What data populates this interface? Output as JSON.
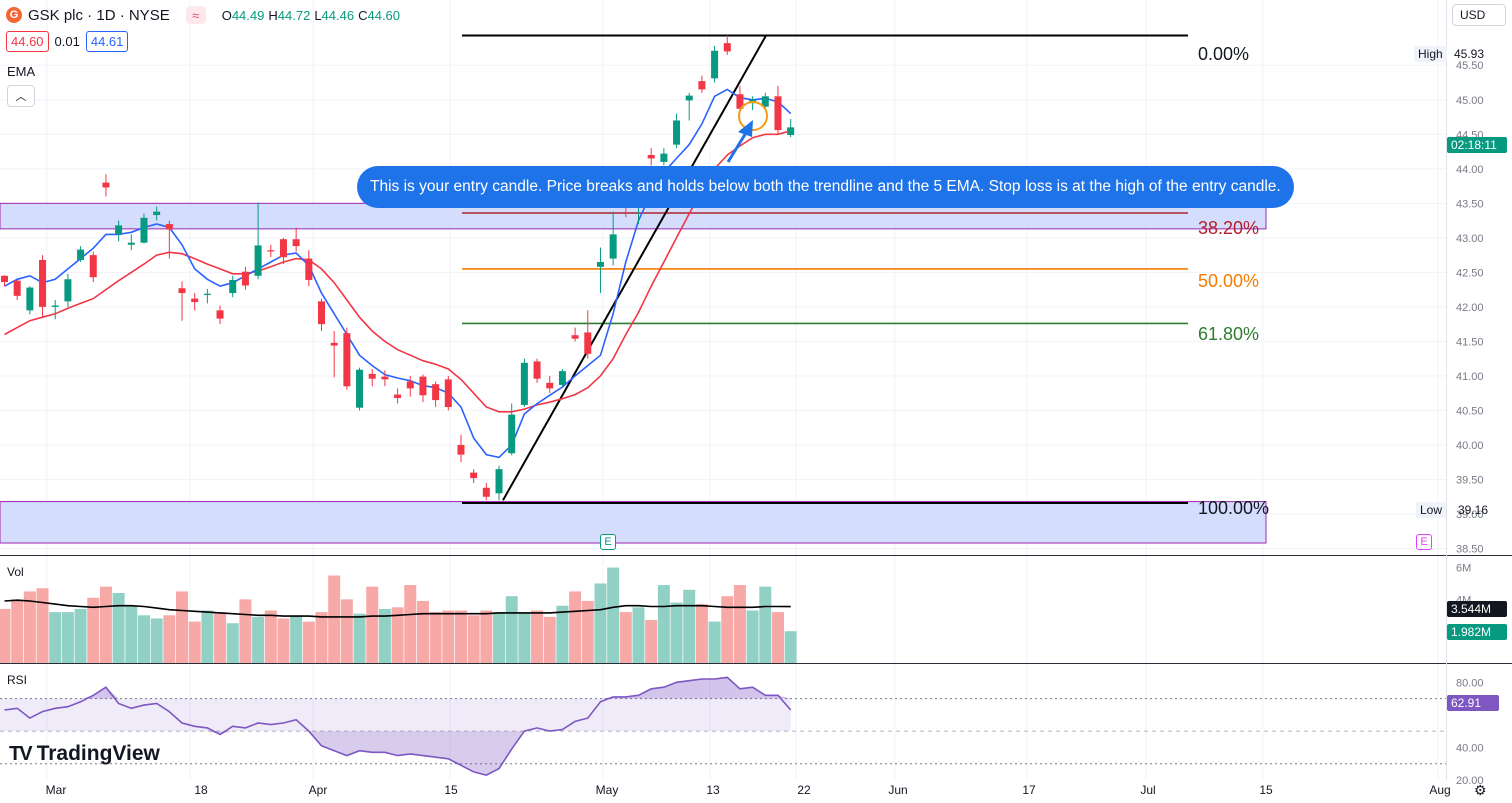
{
  "header": {
    "logo_letter": "G",
    "symbol": "GSK plc · 1D · NYSE",
    "indicator_icon": "wave-icon",
    "ohlc": [
      {
        "key": "O",
        "value": "44.49"
      },
      {
        "key": "H",
        "value": "44.72"
      },
      {
        "key": "L",
        "value": "44.46"
      },
      {
        "key": "C",
        "value": "44.60"
      }
    ]
  },
  "quote": {
    "sell": "44.60",
    "spread": "0.01",
    "buy": "44.61"
  },
  "indicators": {
    "ema_label": "EMA",
    "collapse_icon": "chevron-up-icon",
    "vol_label": "Vol",
    "rsi_label": "RSI"
  },
  "currency": "USD",
  "annotation": {
    "text": "This is your entry candle. Price breaks and holds below both the trendline and the 5 EMA. Stop loss is at the high of the entry candle."
  },
  "fib_levels": [
    {
      "label": "0.00%",
      "price": 45.93,
      "color": "#000000"
    },
    {
      "label": "38.20%",
      "price": 43.36,
      "color": "#b2202c"
    },
    {
      "label": "50.00%",
      "price": 42.55,
      "color": "#f57c00"
    },
    {
      "label": "61.80%",
      "price": 41.76,
      "color": "#2e7d32"
    },
    {
      "label": "100.00%",
      "price": 39.16,
      "color": "#000000"
    }
  ],
  "price_axis": {
    "ticks": [
      "45.50",
      "45.00",
      "44.50",
      "44.00",
      "43.50",
      "43.00",
      "42.50",
      "42.00",
      "41.50",
      "41.00",
      "40.50",
      "40.00",
      "39.50",
      "39.00",
      "38.50"
    ],
    "high_label": "High",
    "high_value": "45.93",
    "low_label": "Low",
    "low_value": "39.16",
    "countdown": "02:18:11"
  },
  "volume_axis": {
    "ticks": [
      "6M",
      "4M"
    ],
    "ma_value": "3.544M",
    "last_value": "1.982M"
  },
  "rsi_axis": {
    "ticks": [
      "80.00",
      "40.00",
      "20.00"
    ],
    "value": "62.91"
  },
  "time_axis": [
    "Mar",
    "18",
    "Apr",
    "15",
    "May",
    "13",
    "22",
    "Jun",
    "17",
    "Jul",
    "15",
    "Aug"
  ],
  "earnings_marker": "E",
  "brand": "TradingView",
  "colors": {
    "up": "#089981",
    "down": "#f23645",
    "ema_fast": "#2962ff",
    "ema_slow": "#f23645",
    "rsi": "#7e57c2",
    "zone": "#c5d3fb"
  },
  "chart_data": {
    "type": "candlestick",
    "title": "GSK plc · 1D · NYSE",
    "candles": [
      [
        42.45,
        42.36,
        42.46,
        42.3
      ],
      [
        42.38,
        42.16,
        42.39,
        42.1
      ],
      [
        41.95,
        42.28,
        42.3,
        41.89
      ],
      [
        42.68,
        42.0,
        42.75,
        41.85
      ],
      [
        42.0,
        42.02,
        42.1,
        41.82
      ],
      [
        42.08,
        42.4,
        42.48,
        42.0
      ],
      [
        42.68,
        42.83,
        42.88,
        42.65
      ],
      [
        42.75,
        42.43,
        42.8,
        42.36
      ],
      [
        43.8,
        43.73,
        43.92,
        43.6
      ],
      [
        43.05,
        43.18,
        43.25,
        42.95
      ],
      [
        42.9,
        42.93,
        43.05,
        42.82
      ],
      [
        42.93,
        43.29,
        43.35,
        42.92
      ],
      [
        43.33,
        43.38,
        43.45,
        43.25
      ],
      [
        43.2,
        43.12,
        43.25,
        42.7
      ],
      [
        42.27,
        42.2,
        42.37,
        41.8
      ],
      [
        42.12,
        42.07,
        42.2,
        41.95
      ],
      [
        42.18,
        42.19,
        42.26,
        42.05
      ],
      [
        41.95,
        41.83,
        42.02,
        41.75
      ],
      [
        42.2,
        42.39,
        42.45,
        42.14
      ],
      [
        42.51,
        42.31,
        42.58,
        42.25
      ],
      [
        42.45,
        42.89,
        43.51,
        42.4
      ],
      [
        42.82,
        42.81,
        42.9,
        42.72
      ],
      [
        42.98,
        42.72,
        43.0,
        42.62
      ],
      [
        42.98,
        42.88,
        43.15,
        42.8
      ],
      [
        42.7,
        42.39,
        42.82,
        42.3
      ],
      [
        42.08,
        41.75,
        42.12,
        41.65
      ],
      [
        41.48,
        41.44,
        41.65,
        40.98
      ],
      [
        41.62,
        40.85,
        41.7,
        40.8
      ],
      [
        40.54,
        41.09,
        41.12,
        40.5
      ],
      [
        41.03,
        40.96,
        41.1,
        40.85
      ],
      [
        40.99,
        40.95,
        41.08,
        40.85
      ],
      [
        40.73,
        40.68,
        40.82,
        40.6
      ],
      [
        40.92,
        40.82,
        41.0,
        40.7
      ],
      [
        40.99,
        40.72,
        41.02,
        40.62
      ],
      [
        40.88,
        40.65,
        40.92,
        40.55
      ],
      [
        40.95,
        40.55,
        41.0,
        40.5
      ],
      [
        40.0,
        39.86,
        40.15,
        39.75
      ],
      [
        39.6,
        39.52,
        39.65,
        39.45
      ],
      [
        39.38,
        39.25,
        39.45,
        39.2
      ],
      [
        39.3,
        39.65,
        39.7,
        39.2
      ],
      [
        39.88,
        40.44,
        40.6,
        39.85
      ],
      [
        40.58,
        41.19,
        41.25,
        40.55
      ],
      [
        41.21,
        40.96,
        41.25,
        40.9
      ],
      [
        40.9,
        40.82,
        41.0,
        40.75
      ],
      [
        40.87,
        41.07,
        41.1,
        40.85
      ],
      [
        41.59,
        41.54,
        41.7,
        41.5
      ],
      [
        41.63,
        41.32,
        41.95,
        41.25
      ],
      [
        42.58,
        42.65,
        42.86,
        42.2
      ],
      [
        42.7,
        43.05,
        43.38,
        42.6
      ],
      [
        43.58,
        43.49,
        43.67,
        43.3
      ],
      [
        43.47,
        43.48,
        43.7,
        43.2
      ],
      [
        44.2,
        44.15,
        44.3,
        44.05
      ],
      [
        44.1,
        44.22,
        44.3,
        44.05
      ],
      [
        44.35,
        44.7,
        44.8,
        44.3
      ],
      [
        44.99,
        45.06,
        45.1,
        44.7
      ],
      [
        45.27,
        45.15,
        45.35,
        45.1
      ],
      [
        45.31,
        45.71,
        45.78,
        45.25
      ],
      [
        45.82,
        45.7,
        45.93,
        45.65
      ],
      [
        45.08,
        44.87,
        45.2,
        44.8
      ],
      [
        44.95,
        45.0,
        45.05,
        44.85
      ],
      [
        44.9,
        45.05,
        45.1,
        44.85
      ],
      [
        45.05,
        44.56,
        45.2,
        44.5
      ],
      [
        44.49,
        44.6,
        44.72,
        44.46
      ]
    ],
    "volumes_m": [
      3.4,
      4.0,
      4.5,
      4.7,
      3.2,
      3.2,
      3.4,
      4.1,
      4.8,
      4.4,
      3.6,
      3.0,
      2.8,
      3.0,
      4.5,
      2.6,
      3.3,
      3.2,
      2.5,
      4.0,
      2.9,
      3.3,
      2.8,
      3.0,
      2.6,
      3.2,
      5.5,
      4.0,
      3.1,
      4.8,
      3.4,
      3.5,
      4.9,
      3.9,
      3.2,
      3.3,
      3.3,
      3.0,
      3.3,
      3.2,
      4.2,
      3.2,
      3.3,
      2.9,
      3.6,
      4.5,
      3.9,
      5.0,
      6.0,
      3.2,
      3.5,
      2.7,
      4.9,
      3.8,
      4.6,
      3.7,
      2.6,
      4.2,
      4.9,
      3.3,
      4.8,
      3.2,
      2.0
    ],
    "vol_up": [
      false,
      false,
      false,
      false,
      true,
      true,
      true,
      false,
      false,
      true,
      true,
      true,
      true,
      false,
      false,
      false,
      true,
      false,
      true,
      false,
      true,
      false,
      false,
      true,
      false,
      false,
      false,
      false,
      true,
      false,
      true,
      false,
      false,
      false,
      false,
      false,
      false,
      false,
      false,
      true,
      true,
      true,
      false,
      false,
      true,
      false,
      false,
      true,
      true,
      false,
      true,
      false,
      true,
      true,
      true,
      false,
      true,
      false,
      false,
      true,
      true,
      false,
      true
    ],
    "ema_fast": [
      42.3,
      42.4,
      42.45,
      42.35,
      42.4,
      42.55,
      42.7,
      42.85,
      43.05,
      43.05,
      43.08,
      43.15,
      43.2,
      43.15,
      42.9,
      42.55,
      42.4,
      42.3,
      42.35,
      42.45,
      42.55,
      42.65,
      42.75,
      42.78,
      42.6,
      42.2,
      41.9,
      41.6,
      41.3,
      41.15,
      41.02,
      40.97,
      40.93,
      40.86,
      40.83,
      40.75,
      40.55,
      40.1,
      39.86,
      39.82,
      40.0,
      40.45,
      40.6,
      40.72,
      40.84,
      41.0,
      41.15,
      41.3,
      41.9,
      42.65,
      43.25,
      43.65,
      43.95,
      44.15,
      44.35,
      44.65,
      45.05,
      45.15,
      45.03,
      45.0,
      45.02,
      44.97,
      44.8
    ],
    "ema_slow": [
      41.6,
      41.7,
      41.8,
      41.85,
      41.9,
      41.98,
      42.05,
      42.12,
      42.25,
      42.38,
      42.5,
      42.62,
      42.75,
      42.79,
      42.77,
      42.7,
      42.62,
      42.55,
      42.48,
      42.48,
      42.52,
      42.58,
      42.65,
      42.7,
      42.68,
      42.55,
      42.35,
      42.1,
      41.85,
      41.65,
      41.5,
      41.38,
      41.3,
      41.22,
      41.17,
      41.1,
      40.95,
      40.75,
      40.55,
      40.48,
      40.48,
      40.52,
      40.58,
      40.62,
      40.67,
      40.73,
      40.83,
      41.0,
      41.25,
      41.6,
      41.92,
      42.3,
      42.65,
      43.0,
      43.35,
      43.7,
      44.0,
      44.2,
      44.33,
      44.45,
      44.5,
      44.5,
      44.55
    ],
    "vol_ma_m": [
      3.9,
      3.95,
      3.9,
      3.8,
      3.7,
      3.6,
      3.55,
      3.5,
      3.55,
      3.6,
      3.6,
      3.55,
      3.45,
      3.35,
      3.3,
      3.25,
      3.2,
      3.15,
      3.1,
      3.05,
      3.0,
      3.0,
      2.95,
      2.95,
      2.95,
      2.9,
      2.9,
      2.9,
      2.9,
      2.95,
      2.95,
      3.0,
      3.05,
      3.1,
      3.1,
      3.1,
      3.1,
      3.1,
      3.1,
      3.15,
      3.15,
      3.15,
      3.15,
      3.15,
      3.2,
      3.25,
      3.3,
      3.35,
      3.5,
      3.6,
      3.6,
      3.55,
      3.55,
      3.6,
      3.6,
      3.6,
      3.55,
      3.5,
      3.5,
      3.5,
      3.55,
      3.55,
      3.544
    ],
    "rsi": [
      63,
      64,
      58,
      62,
      64,
      65,
      68,
      72,
      77,
      67,
      64,
      66,
      67,
      62,
      55,
      53,
      52,
      48,
      53,
      52,
      55,
      54,
      55,
      57,
      50,
      41,
      38,
      35,
      38,
      37,
      37,
      35,
      36,
      35,
      34,
      33,
      29,
      25,
      23,
      27,
      39,
      50,
      52,
      50,
      51,
      56,
      58,
      68,
      71,
      71,
      72,
      76,
      77,
      80,
      81,
      82,
      82,
      83,
      76,
      77,
      72,
      72,
      63
    ],
    "fib_prices": [
      45.93,
      43.36,
      42.55,
      41.76,
      39.16
    ],
    "y_range_price": [
      38.45,
      46.3
    ],
    "y_range_volume_m": [
      0,
      6.6
    ],
    "y_range_rsi": [
      20,
      90
    ]
  }
}
